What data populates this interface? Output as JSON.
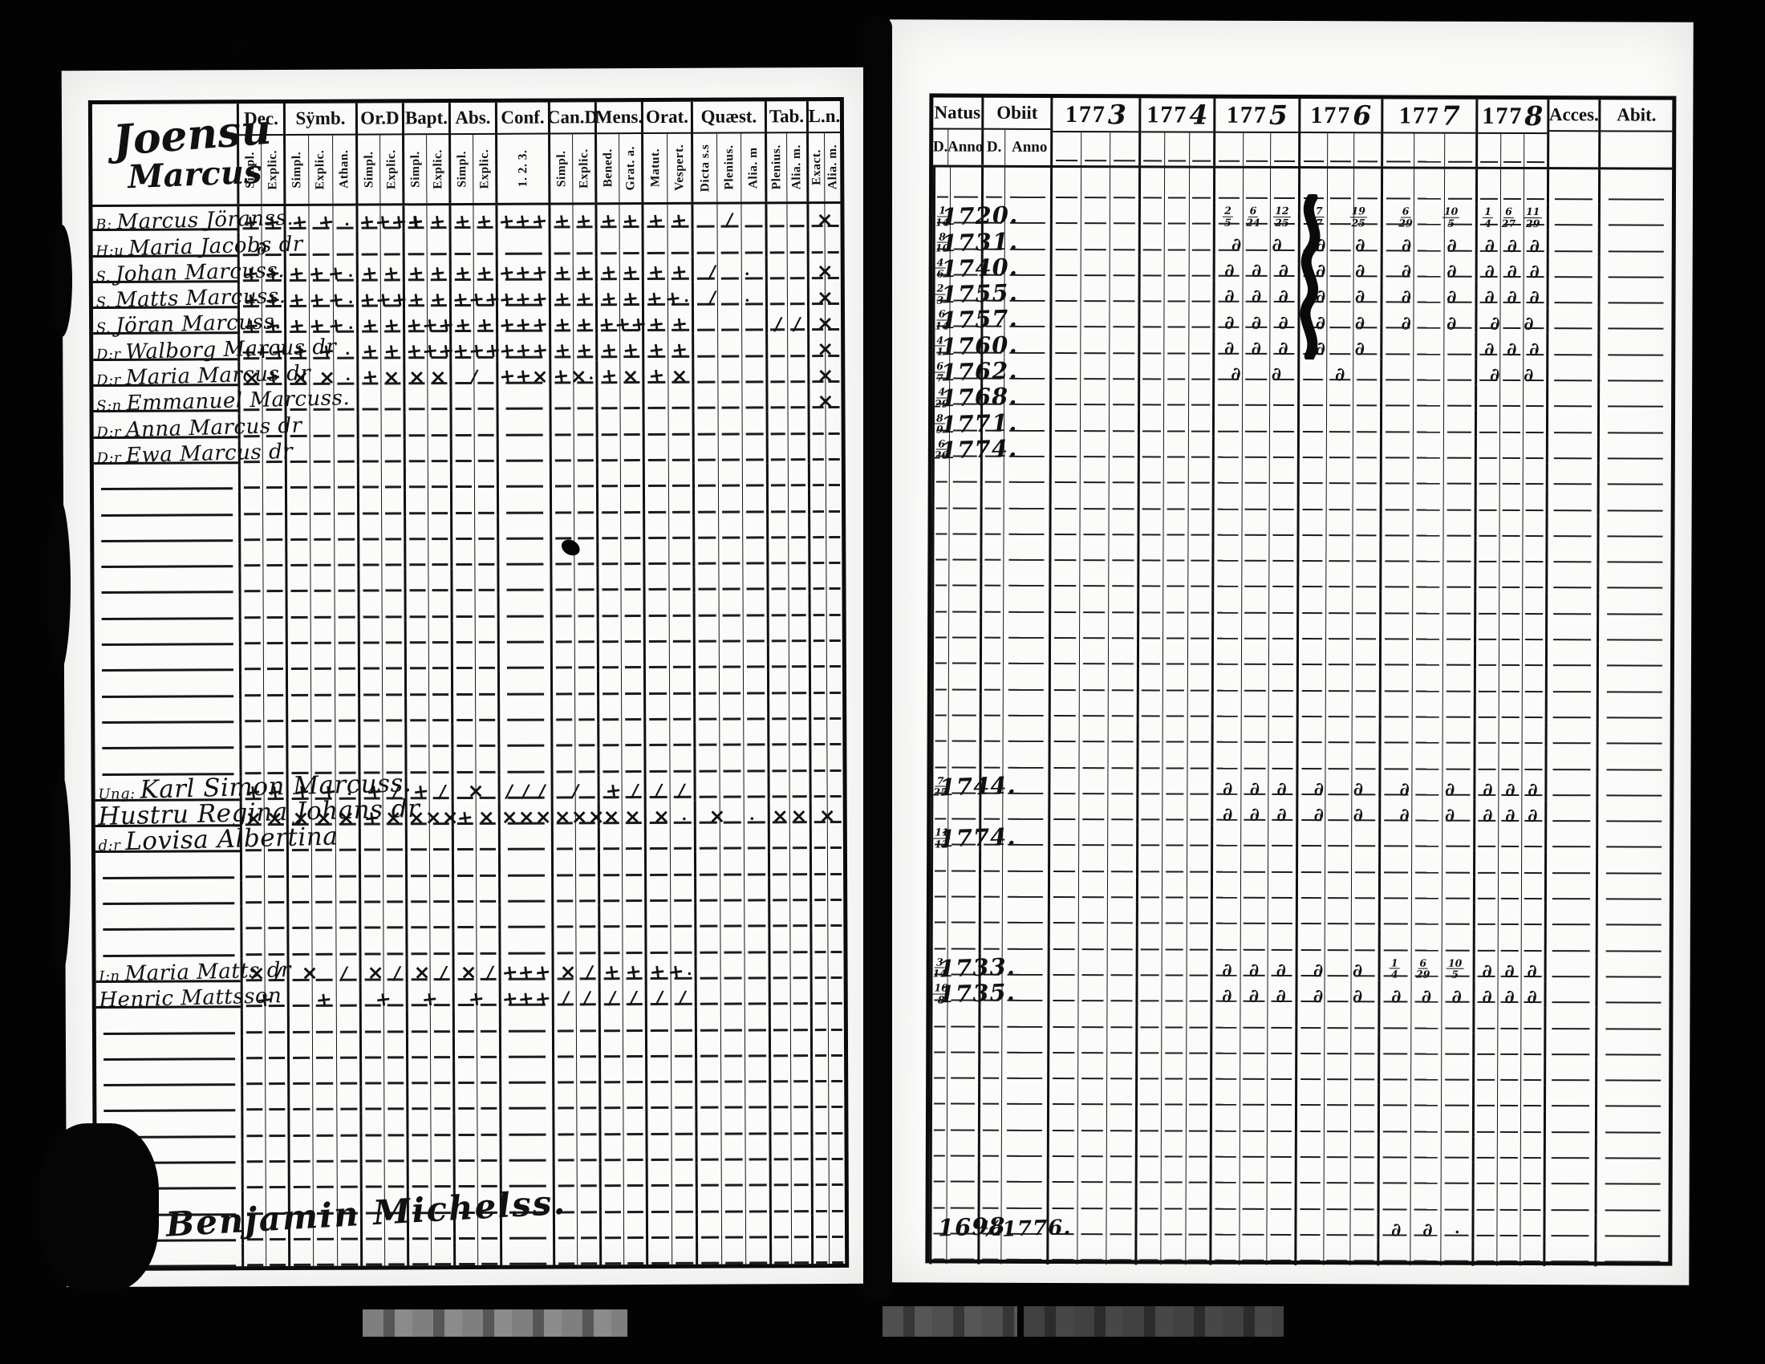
{
  "palette": {
    "background": "#000000",
    "paper": "#fbfbfa",
    "ink": "#111111",
    "artifact_gray": "#8d8d8d"
  },
  "left_page": {
    "heading": {
      "line1": "Joensu",
      "line2": "Marcus"
    },
    "columns": [
      {
        "label": "Dec.",
        "subs": [
          "Simpl.",
          "Explic."
        ]
      },
      {
        "label": "Sÿmb.",
        "subs": [
          "Simpl.",
          "Explic.",
          "Athan."
        ]
      },
      {
        "label": "Or.D",
        "subs": [
          "Simpl.",
          "Explic."
        ]
      },
      {
        "label": "Bapt.",
        "subs": [
          "Simpl.",
          "Explic."
        ]
      },
      {
        "label": "Abs.",
        "subs": [
          "Simpl.",
          "Explic."
        ]
      },
      {
        "label": "Conf.",
        "subs": [
          "1. 2. 3."
        ]
      },
      {
        "label": "Can.D",
        "subs": [
          "Simpl.",
          "Explic."
        ]
      },
      {
        "label": "Mens.",
        "subs": [
          "Bened.",
          "Grat. a."
        ]
      },
      {
        "label": "Orat.",
        "subs": [
          "Matut.",
          "Vespert."
        ]
      },
      {
        "label": "Quæst.",
        "subs": [
          "Dicta s.s",
          "Plenius.",
          "Alia. m"
        ]
      },
      {
        "label": "Tab.",
        "subs": [
          "Plenius.",
          "Alia. m."
        ]
      },
      {
        "label": "L.n.",
        "subs": [
          "Exact.",
          "Alia. m."
        ]
      }
    ],
    "rows": [
      {
        "slot": 0,
        "margin": "B:",
        "name": "Marcus Jöranss.",
        "marks": {
          "dec": "+ +",
          "symb": "+ + ·",
          "ord": "+ + + +",
          "bapt": "+ +",
          "abs": "+ +",
          "conf": "+ + +",
          "cand": "+ +",
          "mens": "+ +",
          "orat": "+ +",
          "quest": "/",
          "tab": "",
          "ln": "×"
        }
      },
      {
        "slot": 1,
        "margin": "H:u",
        "name": "Maria Jacobs dr",
        "marks": {
          "dec": "∂",
          "symb": "",
          "ord": "",
          "bapt": "",
          "abs": "",
          "conf": "",
          "cand": "",
          "mens": "",
          "orat": "",
          "quest": "",
          "tab": "",
          "ln": ""
        }
      },
      {
        "slot": 2,
        "margin": "S.",
        "name": "Johan Marcuss.",
        "marks": {
          "dec": "+ +",
          "symb": "+ + + ·",
          "ord": "+ +",
          "bapt": "+ +",
          "abs": "+ +",
          "conf": "+ + +",
          "cand": "+ +",
          "mens": "+ +",
          "orat": "+ +",
          "quest": "/ ·",
          "tab": "",
          "ln": "×"
        }
      },
      {
        "slot": 3,
        "margin": "S.",
        "name": "Matts Marcuss.",
        "marks": {
          "dec": "+ +",
          "symb": "+ + + ·",
          "ord": "+ + +",
          "bapt": "+ +",
          "abs": "+ + +",
          "conf": "+ + +",
          "cand": "+ +",
          "mens": "+ +",
          "orat": "+ + ·",
          "quest": "/ ·",
          "tab": "",
          "ln": "×"
        }
      },
      {
        "slot": 4,
        "margin": "S.",
        "name": "Jöran Marcuss.",
        "marks": {
          "dec": "+ +",
          "symb": "+ + + ·",
          "ord": "+ +",
          "bapt": "+ + +",
          "abs": "+ +",
          "conf": "+ + +",
          "cand": "+ +",
          "mens": "+ + +",
          "orat": "+ +",
          "quest": "",
          "tab": "/ /",
          "ln": "×"
        }
      },
      {
        "slot": 5,
        "margin": "D:r",
        "name": "Walborg Marcus dr",
        "marks": {
          "dec": "++ +",
          "symb": "+ + ·",
          "ord": "+ +",
          "bapt": "+ + +",
          "abs": "+ + +",
          "conf": "+ + +",
          "cand": "+ +",
          "mens": "+ +",
          "orat": "+ +",
          "quest": "",
          "tab": "",
          "ln": "×"
        }
      },
      {
        "slot": 6,
        "margin": "D:r",
        "name": "Maria Marcus dr",
        "marks": {
          "dec": "× +",
          "symb": "× × ·",
          "ord": "+ ×",
          "bapt": "× ×",
          "abs": "/",
          "conf": "+ + ×",
          "cand": "+ × ·",
          "mens": "+ ×",
          "orat": "+ ×",
          "quest": "",
          "tab": "",
          "ln": "×"
        }
      },
      {
        "slot": 7,
        "margin": "S:n",
        "name": "Emmanuel Marcuss.",
        "marks": {
          "dec": "",
          "symb": "",
          "ord": "",
          "bapt": "",
          "abs": "",
          "conf": "",
          "cand": "",
          "mens": "",
          "orat": "",
          "quest": "",
          "tab": "",
          "ln": "×"
        }
      },
      {
        "slot": 8,
        "margin": "D:r",
        "name": "Anna Marcus dr",
        "marks": {
          "dec": "",
          "symb": "",
          "ord": "",
          "bapt": "",
          "abs": "",
          "conf": "",
          "cand": "",
          "mens": "",
          "orat": "",
          "quest": "",
          "tab": "",
          "ln": ""
        }
      },
      {
        "slot": 9,
        "margin": "D:r",
        "name": "Ewa Marcus dr",
        "marks": {
          "dec": "",
          "symb": "",
          "ord": "",
          "bapt": "",
          "abs": "",
          "conf": "",
          "cand": "",
          "mens": "",
          "orat": "",
          "quest": "",
          "tab": "",
          "ln": ""
        }
      },
      {
        "slot": 22,
        "margin": "Ung:",
        "name": "Karl Simon Marcuss.",
        "big": true,
        "marks": {
          "dec": "+ +",
          "symb": "+ + ·",
          "ord": "+ /",
          "bapt": "+ /",
          "abs": "×",
          "conf": "/ / /",
          "cand": "/",
          "mens": "+ /",
          "orat": "/ /",
          "quest": "",
          "tab": "",
          "ln": ""
        }
      },
      {
        "slot": 23,
        "margin": "",
        "name": "Hustru Regina Johans dr",
        "big": true,
        "marks": {
          "dec": "× ×",
          "symb": "× × ×",
          "ord": "+ ×",
          "bapt": "× × ×",
          "abs": "+ ×",
          "conf": "× × ×",
          "cand": "× × ×",
          "mens": "× ×",
          "orat": "× ·",
          "quest": "× ·",
          "tab": "× ×",
          "ln": "×"
        }
      },
      {
        "slot": 24,
        "margin": "d:r",
        "name": "Lovisa Albertina",
        "big": true,
        "marks": {
          "dec": "",
          "symb": "",
          "ord": "",
          "bapt": "",
          "abs": "",
          "conf": "",
          "cand": "",
          "mens": "",
          "orat": "",
          "quest": "",
          "tab": "",
          "ln": ""
        }
      },
      {
        "slot": 29,
        "margin": "I:n",
        "name": "Maria Matts dr",
        "marks": {
          "dec": "× /",
          "symb": "× /",
          "ord": "× /",
          "bapt": "× /",
          "abs": "× /",
          "conf": "+ + +",
          "cand": "× /",
          "mens": "+ +",
          "orat": "+ + ·",
          "quest": "",
          "tab": "",
          "ln": ""
        }
      },
      {
        "slot": 30,
        "margin": "",
        "name": "Henric Mattsson",
        "marks": {
          "dec": "+",
          "symb": "+",
          "ord": "+",
          "bapt": "+",
          "abs": "+",
          "conf": "+ + +",
          "cand": "/ /",
          "mens": "/ /",
          "orat": "/ /",
          "quest": "",
          "tab": "",
          "ln": ""
        }
      }
    ],
    "signature": "Son Benjamin Michelss."
  },
  "right_page": {
    "natus": {
      "label": "Natus",
      "d": "D.",
      "anno": "Anno"
    },
    "obiit": {
      "label": "Obiit",
      "d": "D.",
      "anno": "Anno"
    },
    "years": [
      "1773",
      "1774",
      "1775",
      "1776",
      "1777",
      "1778"
    ],
    "acces_label": "Acces.",
    "abit_label": "Abit.",
    "rows": [
      {
        "slot": 0,
        "natus_d": "1/14",
        "natus_anno": "1720.",
        "obiit_d": "",
        "obiit_anno": "",
        "marks": [
          "",
          "",
          "2/5 6/24 12/25",
          "7/7 19/25",
          "6/29 10/5",
          "1/4 6/27 11/29"
        ]
      },
      {
        "slot": 1,
        "natus_d": "8/10",
        "natus_anno": "1731.",
        "obiit_d": "",
        "obiit_anno": "",
        "marks": [
          "",
          "",
          "∂ ∂",
          "∂ ∂",
          "∂ ∂",
          "∂ ∂ ∂"
        ]
      },
      {
        "slot": 2,
        "natus_d": "4/6",
        "natus_anno": "1740.",
        "obiit_d": "",
        "obiit_anno": "",
        "marks": [
          "",
          "",
          "∂ ∂ ∂",
          "∂ ∂",
          "∂ ∂",
          "∂ ∂ ∂"
        ]
      },
      {
        "slot": 3,
        "natus_d": "2/3",
        "natus_anno": "1755.",
        "obiit_d": "",
        "obiit_anno": "",
        "marks": [
          "",
          "",
          "∂ ∂ ∂",
          "∂ ∂",
          "∂ ∂",
          "∂ ∂ ∂"
        ]
      },
      {
        "slot": 4,
        "natus_d": "6/14",
        "natus_anno": "1757.",
        "obiit_d": "",
        "obiit_anno": "",
        "marks": [
          "",
          "",
          "∂ ∂ ∂",
          "∂ ∂",
          "∂ ∂",
          "∂ ∂"
        ]
      },
      {
        "slot": 5,
        "natus_d": "4/1",
        "natus_anno": "1760.",
        "obiit_d": "",
        "obiit_anno": "",
        "marks": [
          "",
          "",
          "∂ ∂ ∂",
          "∂ ∂",
          "",
          "∂ ∂ ∂"
        ]
      },
      {
        "slot": 6,
        "natus_d": "6/7",
        "natus_anno": "1762.",
        "obiit_d": "",
        "obiit_anno": "",
        "marks": [
          "",
          "",
          "∂ ∂",
          "∂",
          "",
          "∂ ∂"
        ]
      },
      {
        "slot": 7,
        "natus_d": "4/29",
        "natus_anno": "1768.",
        "obiit_d": "",
        "obiit_anno": "",
        "marks": [
          "",
          "",
          "",
          "",
          "",
          ""
        ]
      },
      {
        "slot": 8,
        "natus_d": "8/9",
        "natus_anno": "1771.",
        "obiit_d": "",
        "obiit_anno": "",
        "marks": [
          "",
          "",
          "",
          "",
          "",
          ""
        ]
      },
      {
        "slot": 9,
        "natus_d": "6/26",
        "natus_anno": "1774.",
        "obiit_d": "",
        "obiit_anno": "",
        "marks": [
          "",
          "",
          "",
          "",
          "",
          ""
        ]
      },
      {
        "slot": 22,
        "natus_d": "7/25",
        "natus_anno": "1744.",
        "obiit_d": "",
        "obiit_anno": "",
        "marks": [
          "",
          "",
          "∂ ∂ ∂",
          "∂ ∂",
          "∂ ∂",
          "∂ ∂ ∂"
        ]
      },
      {
        "slot": 23,
        "natus_d": "",
        "natus_anno": "",
        "obiit_d": "",
        "obiit_anno": "",
        "marks": [
          "",
          "",
          "∂ ∂ ∂",
          "∂ ∂",
          "∂ ∂",
          "∂ ∂ ∂"
        ]
      },
      {
        "slot": 24,
        "natus_d": "11/12",
        "natus_anno": "1774.",
        "obiit_d": "",
        "obiit_anno": "",
        "marks": [
          "",
          "",
          "",
          "",
          "",
          ""
        ]
      },
      {
        "slot": 29,
        "natus_d": "3/14",
        "natus_anno": "1733.",
        "obiit_d": "",
        "obiit_anno": "",
        "marks": [
          "",
          "",
          "∂ ∂ ∂",
          "∂ ∂",
          "1/4 6/29 10/5",
          "∂ ∂ ∂"
        ]
      },
      {
        "slot": 30,
        "natus_d": "10/8",
        "natus_anno": "1735.",
        "obiit_d": "",
        "obiit_anno": "",
        "marks": [
          "",
          "",
          "∂ ∂ ∂",
          "∂ ∂",
          "∂ ∂ ∂",
          "∂ ∂ ∂"
        ]
      },
      {
        "slot": 39,
        "natus_d": "",
        "natus_anno": "1698",
        "obiit_d": "½",
        "obiit_anno": "1776.",
        "marks": [
          "",
          "",
          "",
          "",
          "∂ ∂ ·",
          ""
        ]
      }
    ]
  }
}
